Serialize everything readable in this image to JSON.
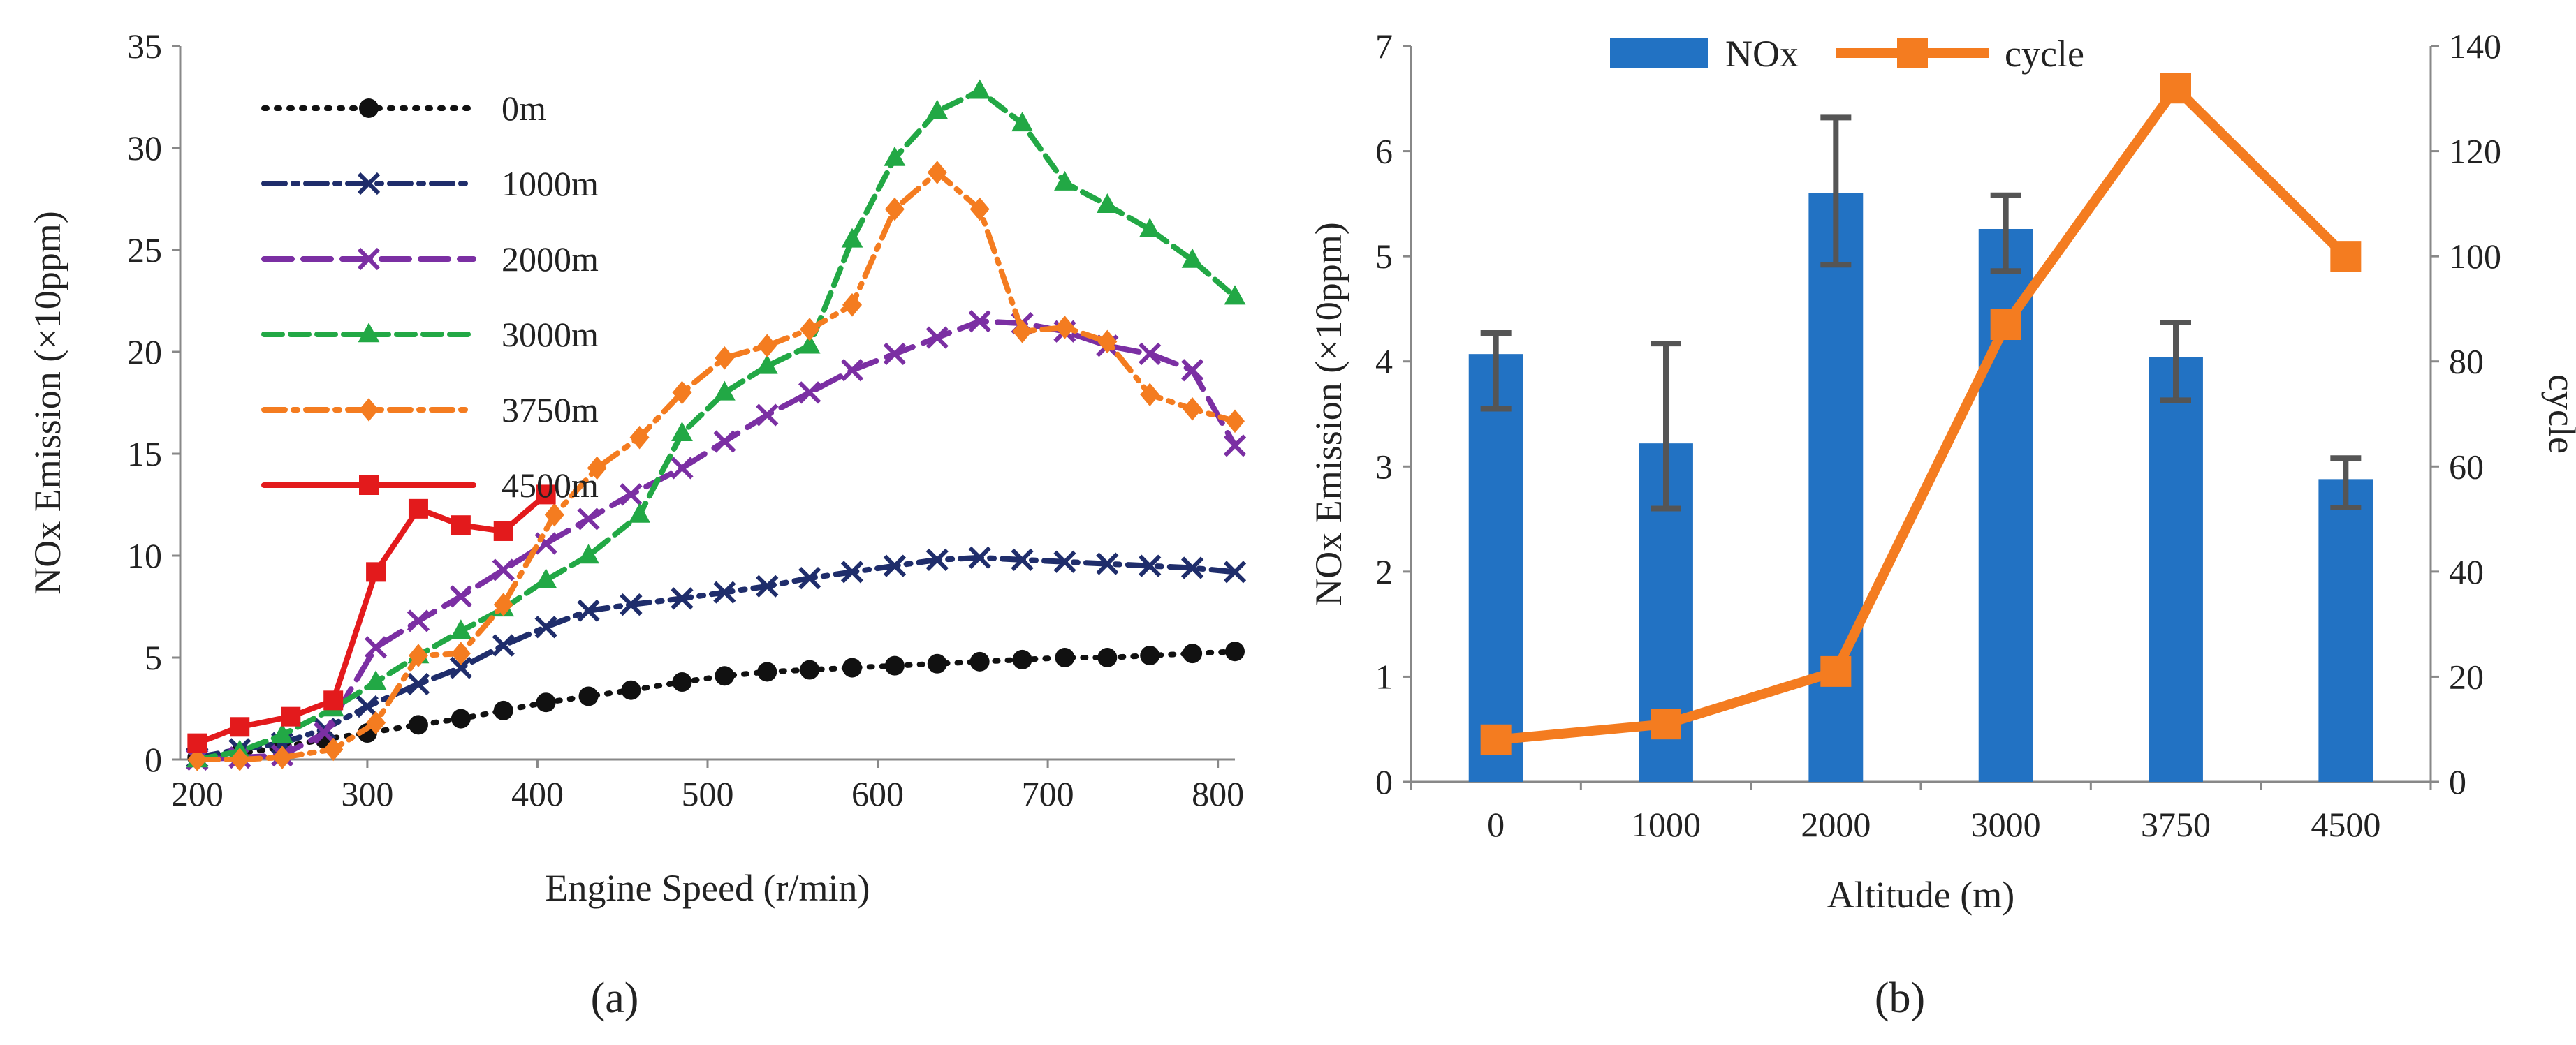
{
  "chart_data": [
    {
      "panel": "(a)",
      "type": "line",
      "xlabel": "Engine Speed (r/min)",
      "ylabel": "NOx Emission (×10ppm)",
      "xlim": [
        190,
        810
      ],
      "ylim": [
        0,
        35
      ],
      "xticks": [
        200,
        300,
        400,
        500,
        600,
        700,
        800
      ],
      "yticks": [
        0,
        5,
        10,
        15,
        20,
        25,
        30,
        35
      ],
      "grid": false,
      "legend": "top-left",
      "series": [
        {
          "name": "0m",
          "color": "#111111",
          "marker": "circle",
          "dash": "dotted",
          "x": [
            200,
            225,
            250,
            275,
            300,
            330,
            355,
            380,
            405,
            430,
            455,
            485,
            510,
            535,
            560,
            585,
            610,
            635,
            660,
            685,
            710,
            735,
            760,
            785,
            810
          ],
          "y": [
            0.1,
            0.3,
            0.6,
            1.0,
            1.3,
            1.7,
            2.0,
            2.4,
            2.8,
            3.1,
            3.4,
            3.8,
            4.1,
            4.3,
            4.4,
            4.5,
            4.6,
            4.7,
            4.8,
            4.9,
            5.0,
            5.0,
            5.1,
            5.2,
            5.3
          ]
        },
        {
          "name": "1000m",
          "color": "#1f2d6b",
          "marker": "x",
          "dash": "dashdot",
          "x": [
            200,
            225,
            250,
            275,
            300,
            330,
            355,
            380,
            405,
            430,
            455,
            485,
            510,
            535,
            560,
            585,
            610,
            635,
            660,
            685,
            710,
            735,
            760,
            785,
            810
          ],
          "y": [
            0.1,
            0.5,
            0.8,
            1.5,
            2.6,
            3.7,
            4.5,
            5.6,
            6.5,
            7.3,
            7.6,
            7.9,
            8.2,
            8.5,
            8.9,
            9.2,
            9.5,
            9.8,
            9.9,
            9.8,
            9.7,
            9.6,
            9.5,
            9.4,
            9.2
          ]
        },
        {
          "name": "2000m",
          "color": "#7b2fa3",
          "marker": "x",
          "dash": "longdash",
          "x": [
            200,
            225,
            250,
            275,
            305,
            330,
            355,
            380,
            405,
            430,
            455,
            485,
            510,
            535,
            560,
            585,
            610,
            635,
            660,
            685,
            710,
            735,
            760,
            785,
            810
          ],
          "y": [
            0.0,
            0.1,
            0.2,
            1.3,
            5.5,
            6.8,
            8.0,
            9.3,
            10.6,
            11.8,
            13.0,
            14.3,
            15.6,
            16.9,
            18.0,
            19.1,
            19.9,
            20.7,
            21.5,
            21.4,
            21.0,
            20.3,
            19.9,
            19.1,
            15.4
          ]
        },
        {
          "name": "3000m",
          "color": "#22a845",
          "marker": "triangle",
          "dash": "dashed",
          "x": [
            200,
            225,
            250,
            280,
            305,
            330,
            355,
            380,
            405,
            430,
            460,
            485,
            510,
            535,
            560,
            585,
            610,
            635,
            660,
            685,
            710,
            735,
            760,
            785,
            810
          ],
          "y": [
            0.0,
            0.4,
            1.2,
            2.5,
            3.8,
            5.1,
            6.3,
            7.4,
            8.8,
            10.0,
            12.0,
            16.0,
            18.0,
            19.3,
            20.3,
            25.5,
            29.5,
            31.8,
            32.8,
            31.2,
            28.3,
            27.2,
            26.0,
            24.5,
            22.7
          ]
        },
        {
          "name": "3750m",
          "color": "#f47c20",
          "marker": "diamond",
          "dash": "dashdot",
          "x": [
            200,
            225,
            250,
            280,
            305,
            330,
            355,
            380,
            410,
            435,
            460,
            485,
            510,
            535,
            560,
            585,
            610,
            635,
            660,
            685,
            710,
            735,
            760,
            785,
            810
          ],
          "y": [
            0.0,
            0.0,
            0.1,
            0.5,
            1.8,
            5.1,
            5.2,
            7.6,
            12.0,
            14.3,
            15.8,
            18.0,
            19.7,
            20.3,
            21.1,
            22.3,
            27.0,
            28.8,
            27.0,
            21.0,
            21.2,
            20.5,
            17.9,
            17.2,
            16.6
          ]
        },
        {
          "name": "4500m",
          "color": "#e31a1c",
          "marker": "square",
          "dash": "solid",
          "x": [
            200,
            225,
            255,
            280,
            305,
            330,
            355,
            380,
            405
          ],
          "y": [
            0.8,
            1.6,
            2.1,
            2.9,
            9.2,
            12.3,
            11.5,
            11.2,
            13.0
          ]
        }
      ]
    },
    {
      "panel": "(b)",
      "type": "bar+line",
      "xlabel": "Altitude (m)",
      "ylabel": "NOx Emission (×10ppm)",
      "y2label": "cycle",
      "categories": [
        "0",
        "1000",
        "2000",
        "3000",
        "3750",
        "4500"
      ],
      "ylim": [
        0,
        7
      ],
      "yticks": [
        0,
        1,
        2,
        3,
        4,
        5,
        6,
        7
      ],
      "y2lim": [
        0,
        140
      ],
      "y2ticks": [
        0,
        20,
        40,
        60,
        80,
        100,
        120,
        140
      ],
      "grid": false,
      "legend": "top",
      "series": [
        {
          "name": "NOx",
          "type": "bar",
          "axis": "left",
          "color": "#2272c3",
          "values": [
            4.07,
            3.22,
            5.6,
            5.26,
            4.04,
            2.88
          ],
          "error_low": [
            3.55,
            2.6,
            4.92,
            4.86,
            3.63,
            2.61
          ],
          "error_high": [
            4.27,
            4.17,
            6.32,
            5.58,
            4.37,
            3.08
          ]
        },
        {
          "name": "cycle",
          "type": "line",
          "axis": "right",
          "color": "#f47c20",
          "marker": "square",
          "values": [
            8,
            11,
            21,
            87,
            132,
            100
          ]
        }
      ]
    }
  ],
  "captions": {
    "a": "(a)",
    "b": "(b)"
  }
}
